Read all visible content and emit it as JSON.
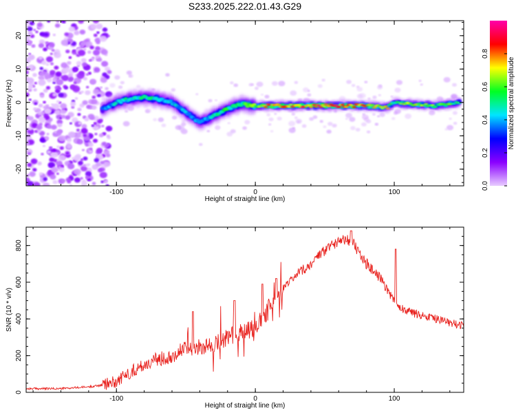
{
  "chart_data": [
    {
      "type": "heatmap",
      "title": "S233.2025.222.01.43.G29",
      "xlabel": "Height of straight line (km)",
      "ylabel": "Frequency (Hz)",
      "xlim": [
        -165,
        150
      ],
      "ylim": [
        -25,
        24.5
      ],
      "xticks": [
        "-100",
        "0",
        "100"
      ],
      "xtick_values": [
        -100,
        0,
        100
      ],
      "yticks": [
        "-20",
        "-10",
        "0",
        "10",
        "20"
      ],
      "ytick_values": [
        -20,
        -10,
        0,
        10,
        20
      ],
      "grid": false,
      "colorbar": {
        "label": "Normalized spectral amplitude",
        "range": [
          0,
          1
        ],
        "ticks": [
          "0.0",
          "0.2",
          "0.4",
          "0.6",
          "0.8"
        ],
        "tick_values": [
          0.0,
          0.2,
          0.4,
          0.6,
          0.8
        ],
        "colors": [
          "#e8ccff",
          "#8a00ff",
          "#0000ff",
          "#00e5ff",
          "#00ff22",
          "#ffff00",
          "#ff0000",
          "#ff00aa"
        ]
      },
      "ridge": {
        "x": [
          -110,
          -100,
          -90,
          -80,
          -70,
          -60,
          -50,
          -40,
          -30,
          -20,
          -10,
          0,
          10,
          30,
          60,
          80,
          95,
          100,
          110,
          130,
          148
        ],
        "frequency": [
          -2,
          0,
          1,
          1.5,
          1,
          0,
          -3,
          -6,
          -4,
          -2,
          -0.5,
          -1,
          -1,
          -1,
          -1,
          -1,
          -1.5,
          0,
          -0.5,
          -1,
          0
        ],
        "amplitude": [
          0.35,
          0.45,
          0.5,
          0.5,
          0.5,
          0.45,
          0.45,
          0.4,
          0.5,
          0.55,
          0.6,
          0.65,
          0.8,
          0.9,
          0.9,
          0.8,
          0.7,
          0.55,
          0.7,
          0.65,
          0.6
        ]
      },
      "noise_region": {
        "x_start": -165,
        "x_end": -105,
        "frequency_range": [
          -25,
          24.5
        ]
      }
    },
    {
      "type": "line",
      "title": "",
      "xlabel": "Height of straight line (km)",
      "ylabel": "SNR (10 * v/v)",
      "xlim": [
        -165,
        150
      ],
      "ylim": [
        0,
        900
      ],
      "xticks": [
        "-100",
        "0",
        "100"
      ],
      "xtick_values": [
        -100,
        0,
        100
      ],
      "yticks": [
        "0",
        "200",
        "400",
        "600",
        "800"
      ],
      "ytick_values": [
        0,
        200,
        400,
        600,
        800
      ],
      "grid": false,
      "series": [
        {
          "name": "SNR",
          "color": "#e8201c",
          "x": [
            -165,
            -140,
            -120,
            -110,
            -100,
            -90,
            -80,
            -70,
            -60,
            -50,
            -40,
            -30,
            -20,
            -10,
            0,
            5,
            10,
            15,
            20,
            30,
            40,
            50,
            60,
            65,
            70,
            75,
            80,
            90,
            95,
            100,
            105,
            110,
            120,
            130,
            140,
            150
          ],
          "values": [
            20,
            20,
            30,
            40,
            60,
            110,
            150,
            180,
            200,
            240,
            250,
            260,
            300,
            330,
            350,
            400,
            460,
            520,
            560,
            640,
            700,
            770,
            830,
            840,
            820,
            750,
            700,
            620,
            560,
            500,
            460,
            440,
            420,
            400,
            380,
            360
          ]
        }
      ],
      "spikes": [
        {
          "x": -45,
          "value": 440
        },
        {
          "x": -25,
          "value": 470
        },
        {
          "x": -15,
          "value": 500
        },
        {
          "x": 5,
          "value": 590
        },
        {
          "x": 15,
          "value": 620
        },
        {
          "x": 69,
          "value": 880
        },
        {
          "x": 101,
          "value": 780
        }
      ]
    }
  ]
}
